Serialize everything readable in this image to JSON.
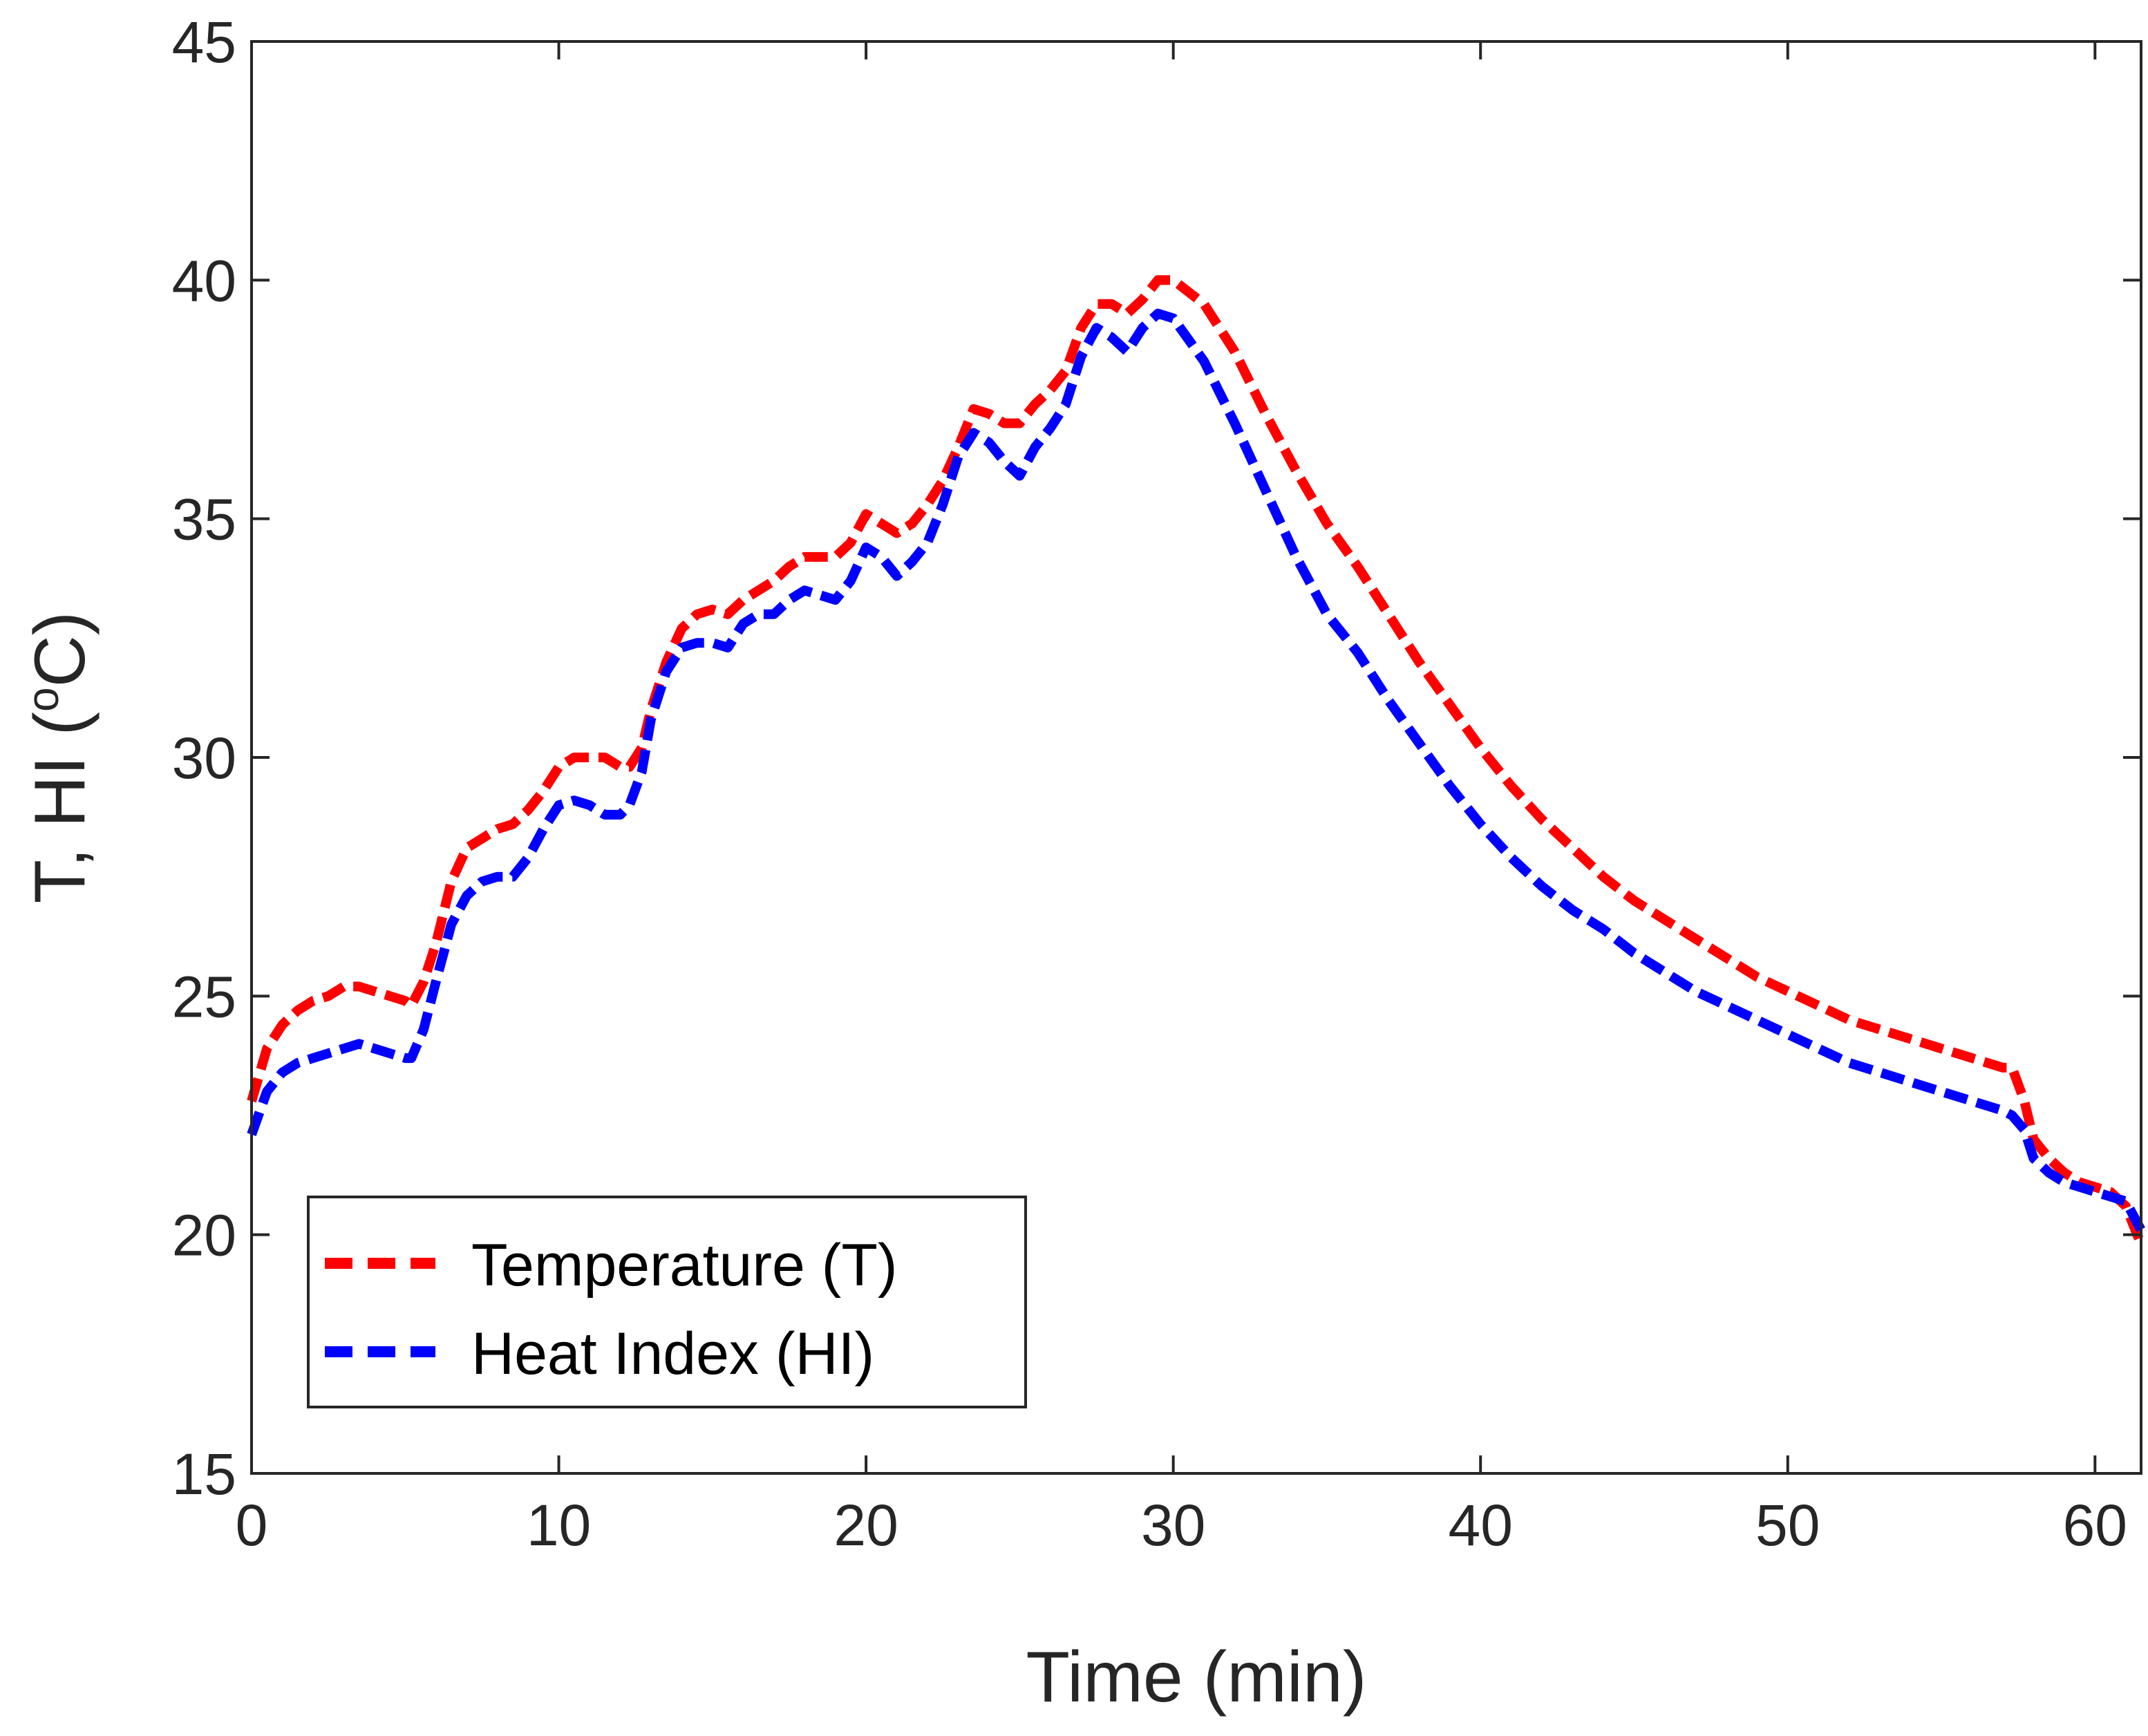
{
  "chart_data": {
    "type": "line",
    "title": "",
    "xlabel": "Time (min)",
    "ylabel_main": "T, HI (",
    "ylabel_sup": "o",
    "ylabel_tail": "C)",
    "xlim": [
      0,
      61.5
    ],
    "ylim": [
      15,
      45
    ],
    "xticks": [
      0,
      10,
      20,
      30,
      40,
      50,
      60
    ],
    "yticks": [
      15,
      20,
      25,
      30,
      35,
      40,
      45
    ],
    "grid": false,
    "legend_position": "bottom-left",
    "series": [
      {
        "name": "Temperature (T)",
        "color": "#ff0000",
        "style": "dashed",
        "x": [
          0,
          0.5,
          1,
          1.5,
          2,
          2.5,
          3,
          3.5,
          4,
          4.5,
          5,
          5.2,
          5.6,
          6,
          6.5,
          7,
          7.5,
          8,
          8.5,
          9,
          9.5,
          10,
          10.5,
          11,
          11.5,
          12,
          12.3,
          12.7,
          13,
          13.5,
          14,
          14.5,
          15,
          15.5,
          16,
          16.5,
          17,
          17.5,
          18,
          18.5,
          19,
          19.5,
          20,
          20.5,
          21,
          21.5,
          22,
          22.5,
          23,
          23.5,
          24,
          24.5,
          25,
          25.5,
          26,
          26.5,
          27,
          27.5,
          28,
          28.5,
          29,
          29.5,
          30,
          31,
          32,
          33,
          34,
          35,
          36,
          37,
          38,
          39,
          40,
          41,
          42,
          43,
          44,
          45,
          46,
          47,
          48,
          49,
          50,
          51,
          52,
          53,
          54,
          55,
          56,
          57,
          57.3,
          57.7,
          58,
          58.5,
          59,
          59.5,
          60,
          60.5,
          61,
          61.5
        ],
        "values": [
          22.8,
          23.9,
          24.4,
          24.7,
          24.9,
          25.0,
          25.2,
          25.2,
          25.1,
          25.0,
          24.9,
          24.8,
          25.3,
          26.1,
          27.4,
          28.1,
          28.3,
          28.5,
          28.6,
          28.9,
          29.3,
          29.8,
          30.0,
          30.0,
          30.0,
          29.8,
          29.8,
          30.2,
          31.0,
          32.0,
          32.7,
          33.0,
          33.1,
          33.0,
          33.3,
          33.5,
          33.7,
          34.0,
          34.2,
          34.2,
          34.2,
          34.5,
          35.1,
          34.9,
          34.7,
          34.9,
          35.3,
          35.8,
          36.5,
          37.3,
          37.2,
          37.0,
          37.0,
          37.4,
          37.7,
          38.1,
          39.0,
          39.5,
          39.5,
          39.3,
          39.6,
          40.0,
          40.0,
          39.5,
          38.5,
          37.2,
          36.0,
          34.9,
          34.0,
          33.0,
          32.0,
          31.1,
          30.2,
          29.4,
          28.7,
          28.1,
          27.5,
          27.0,
          26.6,
          26.2,
          25.8,
          25.4,
          25.1,
          24.8,
          24.5,
          24.3,
          24.1,
          23.9,
          23.7,
          23.5,
          23.5,
          22.8,
          22.0,
          21.6,
          21.3,
          21.1,
          21.0,
          20.9,
          20.6,
          19.8
        ]
      },
      {
        "name": "Heat Index (HI)",
        "color": "#0000ff",
        "style": "dashed",
        "x": [
          0,
          0.5,
          1,
          1.5,
          2,
          2.5,
          3,
          3.5,
          4,
          4.5,
          5,
          5.2,
          5.6,
          6,
          6.5,
          7,
          7.5,
          8,
          8.5,
          9,
          9.5,
          10,
          10.5,
          11,
          11.5,
          12,
          12.3,
          12.7,
          13,
          13.5,
          14,
          14.5,
          15,
          15.5,
          16,
          16.5,
          17,
          17.5,
          18,
          18.5,
          19,
          19.5,
          20,
          20.5,
          21,
          21.5,
          22,
          22.5,
          23,
          23.5,
          24,
          24.5,
          25,
          25.5,
          26,
          26.5,
          27,
          27.5,
          28,
          28.5,
          29,
          29.5,
          30,
          31,
          32,
          33,
          34,
          35,
          36,
          37,
          38,
          39,
          40,
          41,
          42,
          43,
          44,
          45,
          46,
          47,
          48,
          49,
          50,
          51,
          52,
          53,
          54,
          55,
          56,
          57,
          57.3,
          57.7,
          58,
          58.5,
          59,
          59.5,
          60,
          60.5,
          61,
          61.5
        ],
        "values": [
          22.1,
          23.0,
          23.4,
          23.6,
          23.7,
          23.8,
          23.9,
          24.0,
          23.9,
          23.8,
          23.7,
          23.7,
          24.3,
          25.3,
          26.5,
          27.1,
          27.4,
          27.5,
          27.5,
          27.9,
          28.5,
          29.0,
          29.1,
          29.0,
          28.8,
          28.8,
          29.0,
          29.7,
          30.8,
          31.8,
          32.3,
          32.4,
          32.4,
          32.3,
          32.8,
          33.0,
          33.0,
          33.3,
          33.5,
          33.4,
          33.3,
          33.7,
          34.4,
          34.2,
          33.8,
          34.1,
          34.5,
          35.3,
          36.3,
          36.8,
          36.6,
          36.2,
          35.9,
          36.5,
          36.9,
          37.4,
          38.4,
          39.0,
          38.8,
          38.5,
          39.0,
          39.3,
          39.2,
          38.3,
          37.0,
          35.6,
          34.2,
          33.0,
          32.2,
          31.2,
          30.3,
          29.4,
          28.6,
          27.9,
          27.3,
          26.8,
          26.4,
          25.9,
          25.5,
          25.1,
          24.8,
          24.5,
          24.2,
          23.9,
          23.6,
          23.4,
          23.2,
          23.0,
          22.8,
          22.6,
          22.5,
          22.2,
          21.6,
          21.3,
          21.1,
          21.0,
          20.9,
          20.8,
          20.7,
          20.1
        ]
      }
    ]
  }
}
